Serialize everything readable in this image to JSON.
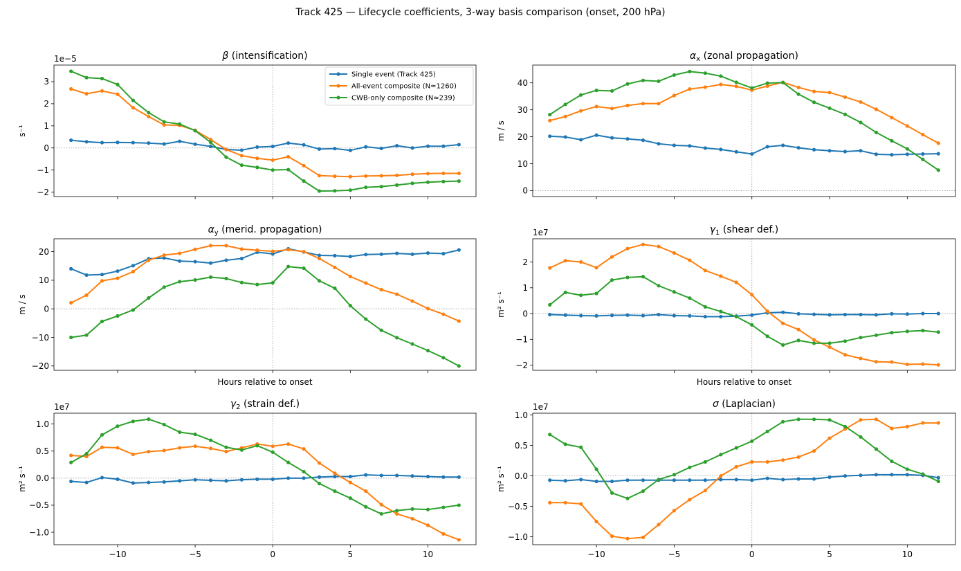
{
  "figure": {
    "suptitle": "Track 425 — Lifecycle coefficients, 3-way basis comparison (onset, 200 hPa)"
  },
  "colors": {
    "single": "#1f77b4",
    "all": "#ff7f0e",
    "cwb": "#2ca02c"
  },
  "legend": {
    "placement": "upper right of first panel",
    "entries": [
      "Single event (Track 425)",
      "All-event composite (N≈1260)",
      "CWB-only composite (N≈239)"
    ]
  },
  "chart_data": [
    {
      "type": "line",
      "title": "β (intensification)",
      "title_sym": "β",
      "title_sub": "",
      "title_rest": " (intensification)",
      "ylabel": "s⁻¹",
      "offset_text": "1e−5",
      "xlabel": "",
      "xlim": [
        -14.1,
        13.1
      ],
      "ylim": [
        -2.2,
        3.75
      ],
      "yticks": [
        -2,
        -1,
        0,
        1,
        2,
        3
      ],
      "ytick_labels": [
        "−2",
        "−1",
        "0",
        "1",
        "2",
        "3"
      ],
      "xticks": [
        -10,
        -5,
        0,
        5,
        10
      ],
      "xtick_labels": [],
      "x": [
        -13,
        -12,
        -11,
        -10,
        -9,
        -8,
        -7,
        -6,
        -5,
        -4,
        -3,
        -2,
        -1,
        0,
        1,
        2,
        3,
        4,
        5,
        6,
        7,
        8,
        9,
        10,
        11,
        12
      ],
      "series": [
        {
          "name": "Single event (Track 425)",
          "color": "#1f77b4",
          "values": [
            0.35,
            0.28,
            0.24,
            0.25,
            0.24,
            0.22,
            0.18,
            0.3,
            0.17,
            0.07,
            -0.07,
            -0.1,
            0.04,
            0.07,
            0.22,
            0.14,
            -0.05,
            -0.03,
            -0.11,
            0.05,
            -0.02,
            0.1,
            0.0,
            0.08,
            0.08,
            0.15
          ]
        },
        {
          "name": "All-event composite (N≈1260)",
          "color": "#ff7f0e",
          "values": [
            2.67,
            2.45,
            2.58,
            2.43,
            1.82,
            1.42,
            1.04,
            1.02,
            0.8,
            0.38,
            -0.07,
            -0.35,
            -0.47,
            -0.55,
            -0.4,
            -0.8,
            -1.25,
            -1.28,
            -1.3,
            -1.27,
            -1.26,
            -1.24,
            -1.19,
            -1.16,
            -1.15,
            -1.15
          ]
        },
        {
          "name": "CWB-only composite (N≈239)",
          "color": "#2ca02c",
          "values": [
            3.47,
            3.18,
            3.14,
            2.87,
            2.15,
            1.6,
            1.18,
            1.08,
            0.78,
            0.25,
            -0.42,
            -0.78,
            -0.88,
            -1.0,
            -0.98,
            -1.5,
            -1.95,
            -1.94,
            -1.91,
            -1.78,
            -1.75,
            -1.68,
            -1.6,
            -1.55,
            -1.52,
            -1.5
          ]
        }
      ]
    },
    {
      "type": "line",
      "title": "αx (zonal propagation)",
      "title_sym": "α",
      "title_sub": "x",
      "title_rest": " (zonal propagation)",
      "ylabel": "m / s",
      "offset_text": "",
      "xlabel": "",
      "xlim": [
        -14.1,
        13.1
      ],
      "ylim": [
        -2.2,
        46.6
      ],
      "yticks": [
        0,
        10,
        20,
        30,
        40
      ],
      "ytick_labels": [
        "0",
        "10",
        "20",
        "30",
        "40"
      ],
      "xticks": [
        -10,
        -5,
        0,
        5,
        10
      ],
      "xtick_labels": [],
      "x": [
        -13,
        -12,
        -11,
        -10,
        -9,
        -8,
        -7,
        -6,
        -5,
        -4,
        -3,
        -2,
        -1,
        0,
        1,
        2,
        3,
        4,
        5,
        6,
        7,
        8,
        9,
        10,
        11,
        12
      ],
      "series": [
        {
          "name": "Single event (Track 425)",
          "color": "#1f77b4",
          "values": [
            20.2,
            19.9,
            18.9,
            20.6,
            19.6,
            19.2,
            18.7,
            17.4,
            16.8,
            16.6,
            15.8,
            15.3,
            14.4,
            13.6,
            16.3,
            16.8,
            15.9,
            15.2,
            14.8,
            14.5,
            14.8,
            13.5,
            13.3,
            13.5,
            13.6,
            13.7
          ]
        },
        {
          "name": "All-event composite (N≈1260)",
          "color": "#ff7f0e",
          "values": [
            26.0,
            27.5,
            29.6,
            31.2,
            30.5,
            31.6,
            32.3,
            32.3,
            35.3,
            37.7,
            38.4,
            39.4,
            38.7,
            37.3,
            38.8,
            40.2,
            38.3,
            36.8,
            36.4,
            34.7,
            32.9,
            30.2,
            27.1,
            24.0,
            20.8,
            17.6
          ]
        },
        {
          "name": "CWB-only composite (N≈239)",
          "color": "#2ca02c",
          "values": [
            28.2,
            32.0,
            35.5,
            37.2,
            37.0,
            39.6,
            40.9,
            40.6,
            42.9,
            44.2,
            43.6,
            42.5,
            40.2,
            38.1,
            39.9,
            40.1,
            35.8,
            32.8,
            30.6,
            28.3,
            25.3,
            21.6,
            18.5,
            15.5,
            11.6,
            7.6
          ]
        }
      ]
    },
    {
      "type": "line",
      "title": "αy (merid. propagation)",
      "title_sym": "α",
      "title_sub": "y",
      "title_rest": " (merid. propagation)",
      "ylabel": "m / s",
      "offset_text": "",
      "xlabel": "Hours relative to onset",
      "xlim": [
        -14.1,
        13.1
      ],
      "ylim": [
        -21.5,
        24.5
      ],
      "yticks": [
        -20,
        -10,
        0,
        10,
        20
      ],
      "ytick_labels": [
        "−20",
        "−10",
        "0",
        "10",
        "20"
      ],
      "xticks": [
        -10,
        -5,
        0,
        5,
        10
      ],
      "xtick_labels": [],
      "x": [
        -13,
        -12,
        -11,
        -10,
        -9,
        -8,
        -7,
        -6,
        -5,
        -4,
        -3,
        -2,
        -1,
        0,
        1,
        2,
        3,
        4,
        5,
        6,
        7,
        8,
        9,
        10,
        11,
        12
      ],
      "series": [
        {
          "name": "Single event (Track 425)",
          "color": "#1f77b4",
          "values": [
            14.0,
            11.8,
            12.0,
            13.2,
            15.1,
            17.5,
            17.8,
            16.7,
            16.5,
            16.0,
            17.0,
            17.6,
            19.8,
            19.2,
            21.0,
            19.9,
            18.7,
            18.6,
            18.3,
            19.0,
            19.1,
            19.4,
            19.1,
            19.5,
            19.3,
            20.6
          ]
        },
        {
          "name": "All-event composite (N≈1260)",
          "color": "#ff7f0e",
          "values": [
            2.1,
            4.8,
            9.8,
            10.7,
            13.0,
            17.0,
            18.8,
            19.4,
            20.8,
            22.1,
            22.1,
            20.9,
            20.5,
            20.1,
            20.7,
            20.0,
            17.6,
            14.5,
            11.3,
            9.0,
            6.7,
            5.1,
            2.7,
            0.1,
            -1.9,
            -4.3
          ]
        },
        {
          "name": "CWB-only composite (N≈239)",
          "color": "#2ca02c",
          "values": [
            -10.0,
            -9.2,
            -4.4,
            -2.5,
            -0.4,
            3.8,
            7.6,
            9.5,
            10.1,
            11.1,
            10.6,
            9.2,
            8.5,
            9.1,
            14.8,
            14.2,
            9.8,
            7.2,
            1.1,
            -3.6,
            -7.5,
            -10.1,
            -12.3,
            -14.6,
            -17.1,
            -20.0
          ]
        }
      ]
    },
    {
      "type": "line",
      "title": "γ1 (shear def.)",
      "title_sym": "γ",
      "title_sub": "1",
      "title_rest": " (shear def.)",
      "ylabel": "m² s⁻¹",
      "offset_text": "1e7",
      "xlabel": "Hours relative to onset",
      "xlim": [
        -14.1,
        13.1
      ],
      "ylim": [
        -2.2,
        2.9
      ],
      "yticks": [
        -2,
        -1,
        0,
        1,
        2
      ],
      "ytick_labels": [
        "−2",
        "−1",
        "0",
        "1",
        "2"
      ],
      "xticks": [
        -10,
        -5,
        0,
        5,
        10
      ],
      "xtick_labels": [],
      "x": [
        -13,
        -12,
        -11,
        -10,
        -9,
        -8,
        -7,
        -6,
        -5,
        -4,
        -3,
        -2,
        -1,
        0,
        1,
        2,
        3,
        4,
        5,
        6,
        7,
        8,
        9,
        10,
        11,
        12
      ],
      "series": [
        {
          "name": "Single event (Track 425)",
          "color": "#1f77b4",
          "values": [
            -0.04,
            -0.06,
            -0.08,
            -0.09,
            -0.07,
            -0.06,
            -0.08,
            -0.04,
            -0.08,
            -0.09,
            -0.12,
            -0.12,
            -0.1,
            -0.06,
            0.03,
            0.05,
            -0.01,
            -0.03,
            -0.05,
            -0.04,
            -0.04,
            -0.05,
            -0.01,
            -0.02,
            0.0,
            0.0
          ]
        },
        {
          "name": "All-event composite (N≈1260)",
          "color": "#ff7f0e",
          "values": [
            1.77,
            2.05,
            2.0,
            1.78,
            2.2,
            2.52,
            2.68,
            2.6,
            2.35,
            2.07,
            1.67,
            1.45,
            1.21,
            0.73,
            0.09,
            -0.38,
            -0.62,
            -1.02,
            -1.3,
            -1.6,
            -1.74,
            -1.87,
            -1.88,
            -1.97,
            -1.96,
            -1.99
          ]
        },
        {
          "name": "CWB-only composite (N≈239)",
          "color": "#2ca02c",
          "values": [
            0.34,
            0.82,
            0.71,
            0.78,
            1.3,
            1.4,
            1.43,
            1.08,
            0.84,
            0.6,
            0.26,
            0.08,
            -0.12,
            -0.44,
            -0.88,
            -1.22,
            -1.04,
            -1.15,
            -1.15,
            -1.07,
            -0.93,
            -0.84,
            -0.74,
            -0.69,
            -0.66,
            -0.72
          ]
        }
      ]
    },
    {
      "type": "line",
      "title": "γ2 (strain def.)",
      "title_sym": "γ",
      "title_sub": "2",
      "title_rest": " (strain def.)",
      "ylabel": "m² s⁻¹",
      "offset_text": "1e7",
      "xlabel": "",
      "xlim": [
        -14.1,
        13.1
      ],
      "ylim": [
        -1.23,
        1.2
      ],
      "yticks": [
        -1.0,
        -0.5,
        0.0,
        0.5,
        1.0
      ],
      "ytick_labels": [
        "−1.0",
        "−0.5",
        "0.0",
        "0.5",
        "1.0"
      ],
      "xticks": [
        -10,
        -5,
        0,
        5,
        10
      ],
      "xtick_labels": [
        "−10",
        "−5",
        "0",
        "5",
        "10"
      ],
      "x": [
        -13,
        -12,
        -11,
        -10,
        -9,
        -8,
        -7,
        -6,
        -5,
        -4,
        -3,
        -2,
        -1,
        0,
        1,
        2,
        3,
        4,
        5,
        6,
        7,
        8,
        9,
        10,
        11,
        12
      ],
      "series": [
        {
          "name": "Single event (Track 425)",
          "color": "#1f77b4",
          "values": [
            -0.06,
            -0.08,
            0.01,
            -0.02,
            -0.09,
            -0.08,
            -0.07,
            -0.05,
            -0.03,
            -0.04,
            -0.05,
            -0.03,
            -0.02,
            -0.02,
            0.0,
            0.0,
            0.02,
            0.03,
            0.03,
            0.06,
            0.05,
            0.05,
            0.04,
            0.03,
            0.02,
            0.02
          ]
        },
        {
          "name": "All-event composite (N≈1260)",
          "color": "#ff7f0e",
          "values": [
            0.42,
            0.4,
            0.57,
            0.56,
            0.44,
            0.49,
            0.51,
            0.56,
            0.59,
            0.55,
            0.49,
            0.56,
            0.63,
            0.59,
            0.63,
            0.54,
            0.28,
            0.09,
            -0.08,
            -0.24,
            -0.49,
            -0.66,
            -0.75,
            -0.87,
            -1.03,
            -1.14
          ]
        },
        {
          "name": "CWB-only composite (N≈239)",
          "color": "#2ca02c",
          "values": [
            0.29,
            0.45,
            0.8,
            0.96,
            1.05,
            1.09,
            0.99,
            0.85,
            0.81,
            0.7,
            0.57,
            0.52,
            0.6,
            0.48,
            0.29,
            0.12,
            -0.1,
            -0.24,
            -0.37,
            -0.53,
            -0.66,
            -0.6,
            -0.57,
            -0.58,
            -0.54,
            -0.5
          ]
        }
      ]
    },
    {
      "type": "line",
      "title": "σ (Laplacian)",
      "title_sym": "σ",
      "title_sub": "",
      "title_rest": " (Laplacian)",
      "ylabel": "m² s⁻¹",
      "offset_text": "1e7",
      "xlabel": "",
      "xlim": [
        -14.1,
        13.1
      ],
      "ylim": [
        -1.13,
        1.03
      ],
      "yticks": [
        -1.0,
        -0.5,
        0.0,
        0.5,
        1.0
      ],
      "ytick_labels": [
        "−1.0",
        "−0.5",
        "0.0",
        "0.5",
        "1.0"
      ],
      "xticks": [
        -10,
        -5,
        0,
        5,
        10
      ],
      "xtick_labels": [
        "−10",
        "−5",
        "0",
        "5",
        "10"
      ],
      "x": [
        -13,
        -12,
        -11,
        -10,
        -9,
        -8,
        -7,
        -6,
        -5,
        -4,
        -3,
        -2,
        -1,
        0,
        1,
        2,
        3,
        4,
        5,
        6,
        7,
        8,
        9,
        10,
        11,
        12
      ],
      "series": [
        {
          "name": "Single event (Track 425)",
          "color": "#1f77b4",
          "values": [
            -0.07,
            -0.08,
            -0.06,
            -0.09,
            -0.09,
            -0.07,
            -0.07,
            -0.07,
            -0.07,
            -0.07,
            -0.07,
            -0.06,
            -0.06,
            -0.07,
            -0.04,
            -0.06,
            -0.05,
            -0.05,
            -0.02,
            0.0,
            0.01,
            0.02,
            0.02,
            0.02,
            0.01,
            -0.03
          ]
        },
        {
          "name": "All-event composite (N≈1260)",
          "color": "#ff7f0e",
          "values": [
            -0.44,
            -0.44,
            -0.46,
            -0.75,
            -0.99,
            -1.03,
            -1.01,
            -0.8,
            -0.57,
            -0.39,
            -0.24,
            0.0,
            0.15,
            0.23,
            0.23,
            0.26,
            0.31,
            0.41,
            0.62,
            0.77,
            0.92,
            0.93,
            0.78,
            0.81,
            0.87,
            0.87
          ]
        },
        {
          "name": "CWB-only composite (N≈239)",
          "color": "#2ca02c",
          "values": [
            0.68,
            0.52,
            0.47,
            0.11,
            -0.28,
            -0.37,
            -0.25,
            -0.06,
            0.02,
            0.14,
            0.23,
            0.35,
            0.46,
            0.57,
            0.73,
            0.89,
            0.93,
            0.93,
            0.92,
            0.81,
            0.64,
            0.44,
            0.24,
            0.11,
            0.03,
            -0.09
          ]
        }
      ]
    }
  ]
}
